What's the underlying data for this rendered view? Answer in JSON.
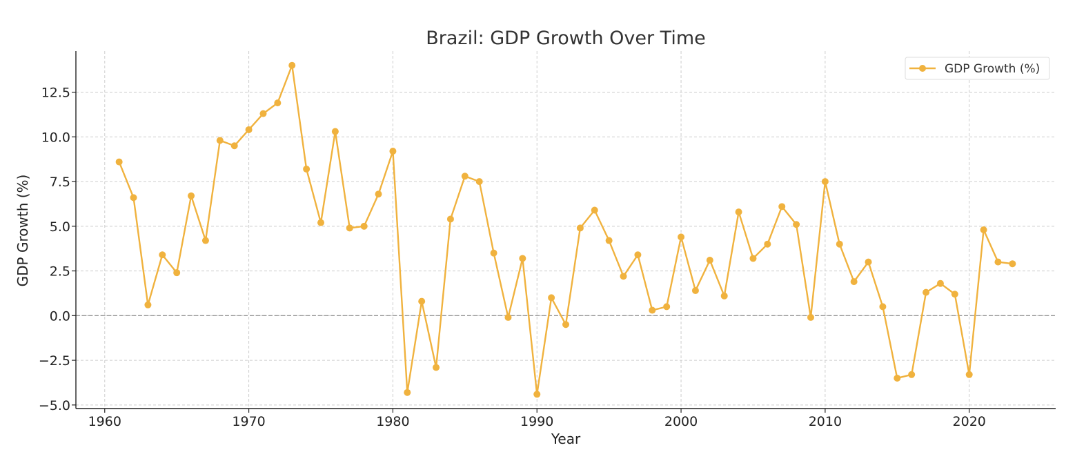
{
  "chart_data": {
    "type": "line",
    "title": "Brazil: GDP Growth Over Time",
    "xlabel": "Year",
    "ylabel": "GDP Growth (%)",
    "xlim": [
      1958,
      2026
    ],
    "ylim": [
      -5.2,
      14.8
    ],
    "xticks": [
      1960,
      1970,
      1980,
      1990,
      2000,
      2010,
      2020
    ],
    "yticks": [
      -5.0,
      -2.5,
      0.0,
      2.5,
      5.0,
      7.5,
      10.0,
      12.5
    ],
    "ytick_labels": [
      "−5.0",
      "−2.5",
      "0.0",
      "2.5",
      "5.0",
      "7.5",
      "10.0",
      "12.5"
    ],
    "grid": true,
    "zero_line": true,
    "legend_position": "top-right",
    "series": [
      {
        "name": "GDP Growth (%)",
        "color": "#F0B23E",
        "x": [
          1961,
          1962,
          1963,
          1964,
          1965,
          1966,
          1967,
          1968,
          1969,
          1970,
          1971,
          1972,
          1973,
          1974,
          1975,
          1976,
          1977,
          1978,
          1979,
          1980,
          1981,
          1982,
          1983,
          1984,
          1985,
          1986,
          1987,
          1988,
          1989,
          1990,
          1991,
          1992,
          1993,
          1994,
          1995,
          1996,
          1997,
          1998,
          1999,
          2000,
          2001,
          2002,
          2003,
          2004,
          2005,
          2006,
          2007,
          2008,
          2009,
          2010,
          2011,
          2012,
          2013,
          2014,
          2015,
          2016,
          2017,
          2018,
          2019,
          2020,
          2021,
          2022,
          2023
        ],
        "values": [
          8.6,
          6.6,
          0.6,
          3.4,
          2.4,
          6.7,
          4.2,
          9.8,
          9.5,
          10.4,
          11.3,
          11.9,
          14.0,
          8.2,
          5.2,
          10.3,
          4.9,
          5.0,
          6.8,
          9.2,
          -4.3,
          0.8,
          -2.9,
          5.4,
          7.8,
          7.5,
          3.5,
          -0.1,
          3.2,
          -4.4,
          1.0,
          -0.5,
          4.9,
          5.9,
          4.2,
          2.2,
          3.4,
          0.3,
          0.5,
          4.4,
          1.4,
          3.1,
          1.1,
          5.8,
          3.2,
          4.0,
          6.1,
          5.1,
          -0.1,
          7.5,
          4.0,
          1.9,
          3.0,
          0.5,
          -3.5,
          -3.3,
          1.3,
          1.8,
          1.2,
          -3.3,
          4.8,
          3.0,
          2.9
        ]
      }
    ]
  }
}
